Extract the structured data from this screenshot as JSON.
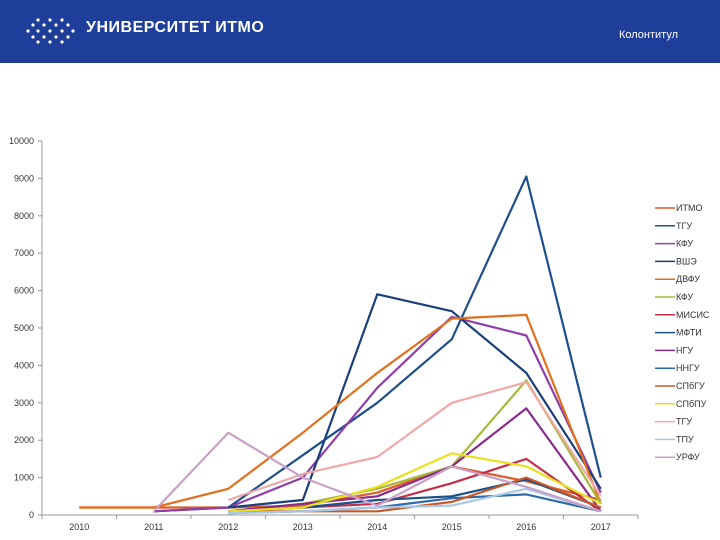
{
  "header": {
    "logo_text": "УНИВЕРСИТЕТ ИТМО",
    "footer_label": "Колонтитул",
    "bg_color": "#1f3e9a"
  },
  "chart_data": {
    "type": "line",
    "title": "",
    "xlabel": "",
    "ylabel": "",
    "x": [
      "2010",
      "2011",
      "2012",
      "2013",
      "2014",
      "2015",
      "2016",
      "2017"
    ],
    "ylim": [
      0,
      10000
    ],
    "yticks": [
      0,
      1000,
      2000,
      3000,
      4000,
      5000,
      6000,
      7000,
      8000,
      9000,
      10000
    ],
    "grid": false,
    "legend_position": "right",
    "series": [
      {
        "name": "ИТМО",
        "color": "#e05a2a",
        "values": [
          200,
          200,
          200,
          250,
          600,
          1300,
          900,
          400
        ]
      },
      {
        "name": "ТГУ",
        "color": "#1f4e8c",
        "values": [
          null,
          100,
          200,
          1600,
          3000,
          4700,
          9050,
          1000
        ]
      },
      {
        "name": "КФУ",
        "color": "#8e3fa8",
        "values": [
          null,
          100,
          200,
          1000,
          3400,
          5300,
          4800,
          600
        ]
      },
      {
        "name": "ВШЭ",
        "color": "#1a3f7a",
        "values": [
          null,
          null,
          200,
          400,
          5900,
          5450,
          3800,
          700
        ]
      },
      {
        "name": "ДВФУ",
        "color": "#e0701e",
        "values": [
          200,
          200,
          700,
          2200,
          3800,
          5250,
          5350,
          300
        ]
      },
      {
        "name": "КФУ",
        "color": "#a8b83a",
        "values": [
          null,
          null,
          100,
          300,
          700,
          1300,
          3600,
          300
        ]
      },
      {
        "name": "МИСИС",
        "color": "#c0304a",
        "values": [
          null,
          null,
          100,
          200,
          300,
          850,
          1500,
          100
        ]
      },
      {
        "name": "МФТИ",
        "color": "#1c4f8a",
        "values": [
          null,
          null,
          100,
          200,
          400,
          500,
          950,
          200
        ]
      },
      {
        "name": "НГУ",
        "color": "#8a2a8a",
        "values": [
          null,
          null,
          100,
          300,
          500,
          1300,
          2850,
          100
        ]
      },
      {
        "name": "ННГУ",
        "color": "#2c6aa8",
        "values": [
          null,
          null,
          50,
          100,
          200,
          450,
          550,
          100
        ]
      },
      {
        "name": "СПбГУ",
        "color": "#c85a2a",
        "values": [
          null,
          null,
          100,
          100,
          100,
          350,
          1000,
          200
        ]
      },
      {
        "name": "СПбПУ",
        "color": "#e8e020",
        "values": [
          null,
          null,
          100,
          200,
          750,
          1650,
          1300,
          300
        ]
      },
      {
        "name": "ТГУ",
        "color": "#f0a8a8",
        "values": [
          null,
          null,
          400,
          1100,
          1550,
          3000,
          3550,
          500
        ]
      },
      {
        "name": "ТПУ",
        "color": "#a8c8e8",
        "values": [
          null,
          null,
          50,
          100,
          200,
          250,
          700,
          100
        ]
      },
      {
        "name": "УРФУ",
        "color": "#c8a0c8",
        "values": [
          null,
          100,
          2200,
          1000,
          250,
          1300,
          750,
          100
        ]
      }
    ]
  }
}
